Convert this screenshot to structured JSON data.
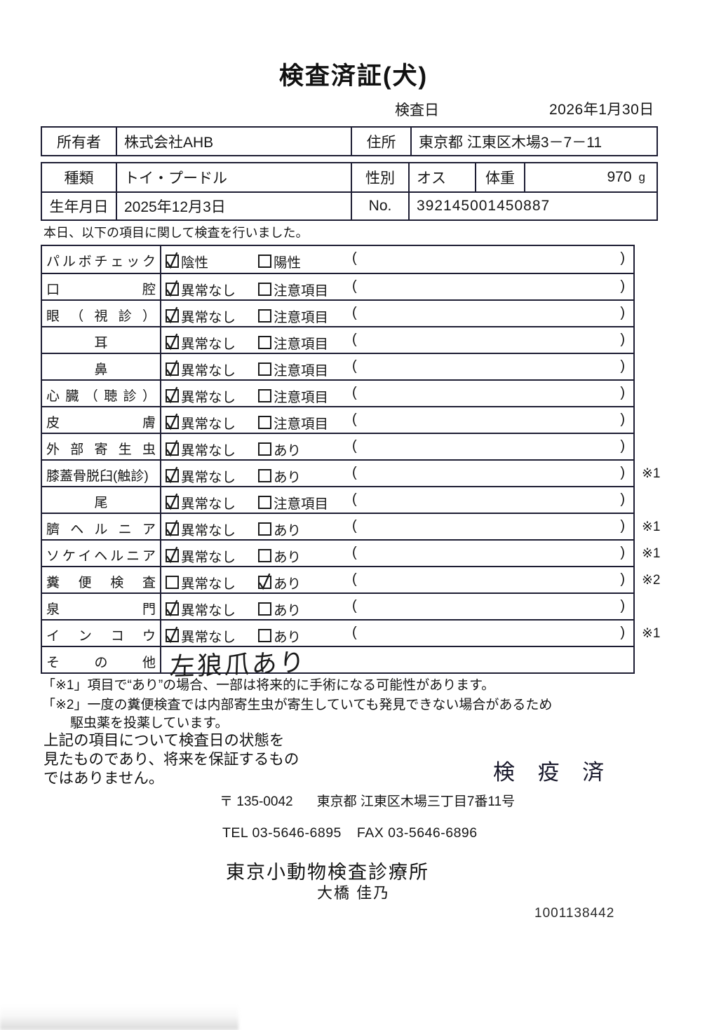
{
  "doc": {
    "title": "検査済証(犬)",
    "inspection_date_label": "検査日",
    "inspection_date": "2026年1月30日"
  },
  "owner_table": {
    "owner_label": "所有者",
    "owner": "株式会社AHB",
    "address_label": "住所",
    "address": "東京都 江東区木場3－7－11"
  },
  "pet_table": {
    "breed_label": "種類",
    "breed": "トイ・プードル",
    "sex_label": "性別",
    "sex": "オス",
    "weight_label": "体重",
    "weight": "970",
    "weight_unit": "g",
    "birth_label": "生年月日",
    "birth": "2025年12月3日",
    "no_label": "No.",
    "no": "392145001450887"
  },
  "intro": "本日、以下の項目に関して検査を行いました。",
  "checklist": {
    "paren_open": "(",
    "paren_close": ")",
    "rows": [
      {
        "label": "パルボチェック",
        "align": "justify",
        "opt1": "陰性",
        "opt1_checked": true,
        "opt2": "陽性",
        "opt2_checked": false,
        "note": ""
      },
      {
        "label": "口腔",
        "align": "justify",
        "opt1": "異常なし",
        "opt1_checked": true,
        "opt2": "注意項目",
        "opt2_checked": false,
        "note": ""
      },
      {
        "label": "眼（視診）",
        "align": "justify",
        "opt1": "異常なし",
        "opt1_checked": true,
        "opt2": "注意項目",
        "opt2_checked": false,
        "note": ""
      },
      {
        "label": "耳",
        "align": "center",
        "opt1": "異常なし",
        "opt1_checked": true,
        "opt2": "注意項目",
        "opt2_checked": false,
        "note": ""
      },
      {
        "label": "鼻",
        "align": "center",
        "opt1": "異常なし",
        "opt1_checked": true,
        "opt2": "注意項目",
        "opt2_checked": false,
        "note": ""
      },
      {
        "label": "心臓（聴診）",
        "align": "justify",
        "opt1": "異常なし",
        "opt1_checked": true,
        "opt2": "注意項目",
        "opt2_checked": false,
        "note": ""
      },
      {
        "label": "皮膚",
        "align": "justify",
        "opt1": "異常なし",
        "opt1_checked": true,
        "opt2": "注意項目",
        "opt2_checked": false,
        "note": ""
      },
      {
        "label": "外部寄生虫",
        "align": "justify",
        "opt1": "異常なし",
        "opt1_checked": true,
        "opt2": "あり",
        "opt2_checked": false,
        "note": ""
      },
      {
        "label": "膝蓋骨脱臼(触診)",
        "align": "left",
        "opt1": "異常なし",
        "opt1_checked": true,
        "opt2": "あり",
        "opt2_checked": false,
        "note": "※1"
      },
      {
        "label": "尾",
        "align": "center",
        "opt1": "異常なし",
        "opt1_checked": true,
        "opt2": "注意項目",
        "opt2_checked": false,
        "note": ""
      },
      {
        "label": "臍ヘルニア",
        "align": "justify",
        "opt1": "異常なし",
        "opt1_checked": true,
        "opt2": "あり",
        "opt2_checked": false,
        "note": "※1"
      },
      {
        "label": "ソケイヘルニア",
        "align": "justify",
        "opt1": "異常なし",
        "opt1_checked": true,
        "opt2": "あり",
        "opt2_checked": false,
        "note": "※1"
      },
      {
        "label": "糞便検査",
        "align": "justify",
        "opt1": "異常なし",
        "opt1_checked": false,
        "opt2": "あり",
        "opt2_checked": true,
        "note": "※2"
      },
      {
        "label": "泉門",
        "align": "justify",
        "opt1": "異常なし",
        "opt1_checked": true,
        "opt2": "あり",
        "opt2_checked": false,
        "note": ""
      },
      {
        "label": "インコウ",
        "align": "justify",
        "opt1": "異常なし",
        "opt1_checked": true,
        "opt2": "あり",
        "opt2_checked": false,
        "note": "※1"
      },
      {
        "label": "その他",
        "align": "justify",
        "handwritten": "左狼爪あり",
        "note": ""
      }
    ]
  },
  "footnotes": {
    "fn1": "「※1」項目で“あり”の場合、一部は将来的に手術になる可能性があります。",
    "fn2": "「※2」一度の糞便検査では内部寄生虫が寄生していても発見できない場合があるため",
    "fn3": "駆虫薬を投薬しています。"
  },
  "statement": {
    "line1": "上記の項目について検査日の状態を",
    "line2": "見たものであり、将来を保証するもの",
    "line3": "ではありません。"
  },
  "footer": {
    "stamp": "検 疫 済",
    "postal_code": "〒 135-0042",
    "office_address": "東京都 江東区木場三丁目7番11号",
    "tel": "TEL 03-5646-6895",
    "fax": "FAX 03-5646-6896",
    "clinic_name": "東京小動物検査診療所",
    "veterinarian": "大橋 佳乃",
    "serial_number": "1001138442"
  }
}
